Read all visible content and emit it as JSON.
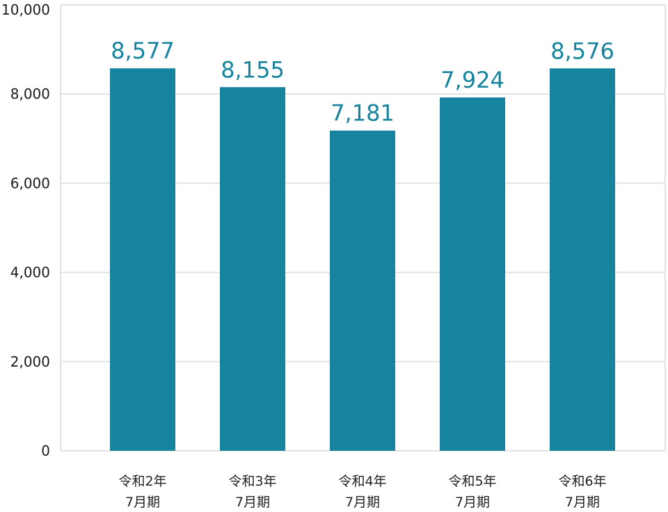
{
  "chart_data": {
    "type": "bar",
    "title": "",
    "xlabel": "",
    "ylabel": "",
    "ylim": [
      0,
      10000
    ],
    "yticks": [
      0,
      2000,
      4000,
      6000,
      8000,
      10000
    ],
    "ytick_labels": [
      "0",
      "2,000",
      "4,000",
      "6,000",
      "8,000",
      "10,000"
    ],
    "grid": true,
    "legend": "none",
    "bar_color": "#16849e",
    "grid_color": "#e2e2e2",
    "categories": [
      [
        "令和2年",
        "7月期"
      ],
      [
        "令和3年",
        "7月期"
      ],
      [
        "令和4年",
        "7月期"
      ],
      [
        "令和5年",
        "7月期"
      ],
      [
        "令和6年",
        "7月期"
      ]
    ],
    "values": [
      8577,
      8155,
      7181,
      7924,
      8576
    ],
    "value_labels": [
      "8,577",
      "8,155",
      "7,181",
      "7,924",
      "8,576"
    ]
  }
}
